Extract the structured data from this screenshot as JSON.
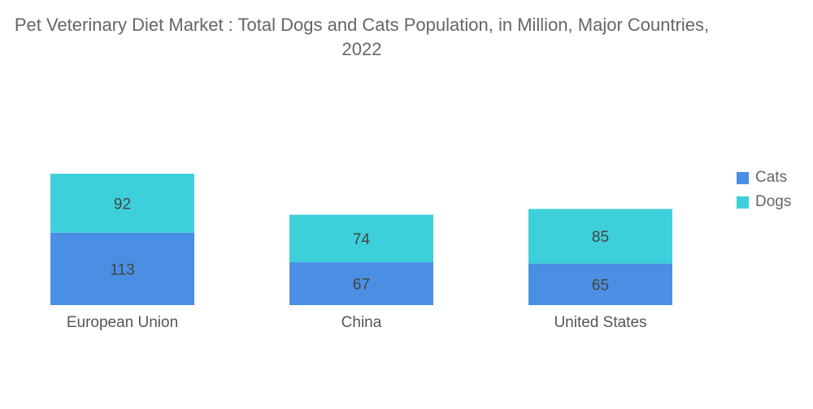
{
  "chart_data": {
    "type": "stacked-bar",
    "title": "Pet Veterinary Diet Market : Total Dogs and Cats Population, in Million, Major Countries, 2022",
    "categories": [
      "European Union",
      "China",
      "United States"
    ],
    "series": [
      {
        "name": "Cats",
        "color": "#4a8fe3",
        "values": [
          113,
          67,
          65
        ]
      },
      {
        "name": "Dogs",
        "color": "#3dd0db",
        "values": [
          92,
          74,
          85
        ]
      }
    ],
    "legend_position": "right",
    "grid": false,
    "y_axis_visible": false
  }
}
